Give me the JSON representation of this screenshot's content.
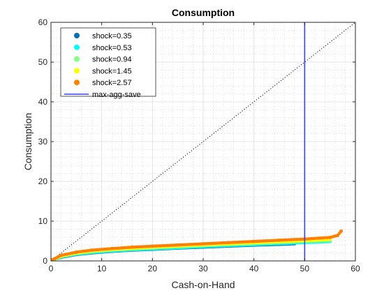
{
  "chart_data": {
    "type": "scatter",
    "title": "Consumption",
    "xlabel": "Cash-on-Hand",
    "ylabel": "Consumption",
    "xlim": [
      0,
      60
    ],
    "ylim": [
      0,
      60
    ],
    "xticks": [
      0,
      10,
      20,
      30,
      40,
      50,
      60
    ],
    "yticks": [
      0,
      10,
      20,
      30,
      40,
      50,
      60
    ],
    "grid": true,
    "minor_grid": true,
    "legend_position": "top-left",
    "series": [
      {
        "name": "shock=0.35",
        "color": "#0072BD",
        "x": [
          0.3,
          2,
          5,
          8,
          12,
          16,
          20,
          25,
          30,
          35,
          40,
          45,
          48
        ],
        "y": [
          0.3,
          0.9,
          1.6,
          2.0,
          2.4,
          2.7,
          2.9,
          3.2,
          3.45,
          3.7,
          3.95,
          4.15,
          4.3
        ]
      },
      {
        "name": "shock=0.53",
        "color": "#00FFFF",
        "x": [
          0.3,
          2,
          5,
          8,
          12,
          16,
          20,
          25,
          30,
          35,
          40,
          45,
          50,
          55
        ],
        "y": [
          0.3,
          1.0,
          1.7,
          2.1,
          2.5,
          2.8,
          3.0,
          3.3,
          3.6,
          3.85,
          4.1,
          4.35,
          4.6,
          4.85
        ]
      },
      {
        "name": "shock=0.94",
        "color": "#80FF80",
        "x": [
          0.3,
          2,
          5,
          8,
          12,
          16,
          20,
          25,
          30,
          35,
          40,
          45,
          50,
          55
        ],
        "y": [
          0.3,
          1.1,
          1.85,
          2.3,
          2.7,
          3.0,
          3.25,
          3.55,
          3.85,
          4.1,
          4.35,
          4.6,
          4.85,
          5.1
        ]
      },
      {
        "name": "shock=1.45",
        "color": "#FFFF00",
        "x": [
          0.3,
          2,
          5,
          8,
          12,
          16,
          20,
          25,
          30,
          35,
          40,
          45,
          50,
          55
        ],
        "y": [
          0.3,
          1.2,
          2.0,
          2.5,
          2.9,
          3.2,
          3.45,
          3.75,
          4.05,
          4.3,
          4.6,
          4.85,
          5.1,
          5.4
        ]
      },
      {
        "name": "shock=2.57",
        "color": "#FF8000",
        "x": [
          0.3,
          2,
          5,
          8,
          12,
          16,
          20,
          25,
          30,
          35,
          40,
          45,
          50,
          55,
          56.5,
          57.2
        ],
        "y": [
          0.3,
          1.4,
          2.2,
          2.7,
          3.1,
          3.45,
          3.7,
          4.0,
          4.3,
          4.6,
          4.9,
          5.2,
          5.5,
          5.9,
          6.4,
          7.5
        ]
      }
    ],
    "reference_lines": [
      {
        "name": "max-agg-save",
        "type": "vertical",
        "x": 50,
        "color": "#3344FF"
      },
      {
        "type": "diagonal",
        "from": [
          0,
          0
        ],
        "to": [
          60,
          60
        ],
        "style": "dotted",
        "color": "#000000"
      }
    ]
  }
}
